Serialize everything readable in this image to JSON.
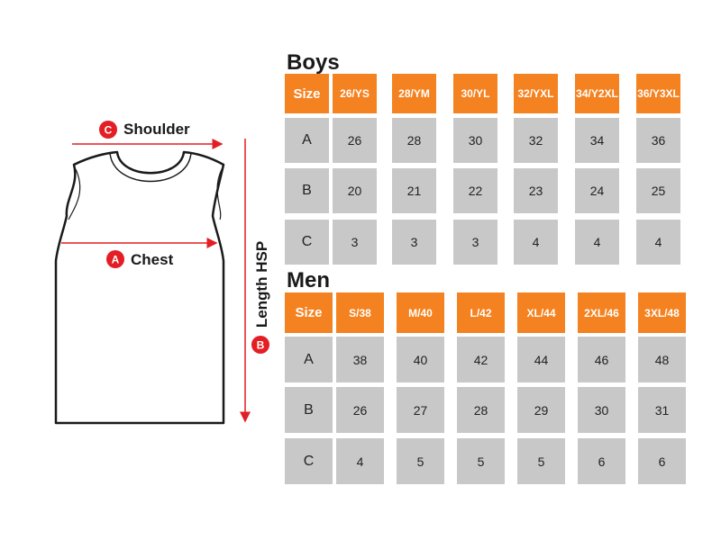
{
  "diagram": {
    "shoulder_letter": "C",
    "shoulder_label": "Shoulder",
    "chest_letter": "A",
    "chest_label": "Chest",
    "length_letter": "B",
    "length_label": "Length HSP",
    "accent_color": "#e31e24"
  },
  "boys": {
    "title": "Boys",
    "header": [
      "Size",
      "26/YS",
      "28/YM",
      "30/YL",
      "32/YXL",
      "34/Y2XL",
      "36/Y3XL"
    ],
    "rows": [
      [
        "A",
        "26",
        "28",
        "30",
        "32",
        "34",
        "36"
      ],
      [
        "B",
        "20",
        "21",
        "22",
        "23",
        "24",
        "25"
      ],
      [
        "C",
        "3",
        "3",
        "3",
        "4",
        "4",
        "4"
      ]
    ]
  },
  "men": {
    "title": "Men",
    "header": [
      "Size",
      "S/38",
      "M/40",
      "L/42",
      "XL/44",
      "2XL/46",
      "3XL/48"
    ],
    "rows": [
      [
        "A",
        "38",
        "40",
        "42",
        "44",
        "46",
        "48"
      ],
      [
        "B",
        "26",
        "27",
        "28",
        "29",
        "30",
        "31"
      ],
      [
        "C",
        "4",
        "5",
        "5",
        "5",
        "6",
        "6"
      ]
    ]
  },
  "colors": {
    "header_bg": "#f58220",
    "cell_bg": "#c8c8c8"
  }
}
